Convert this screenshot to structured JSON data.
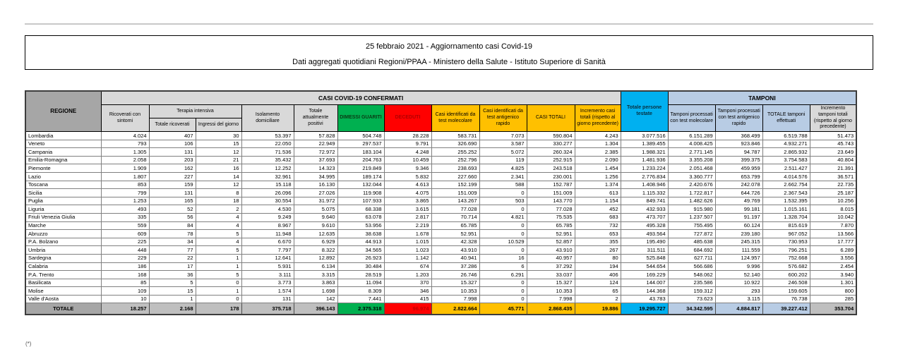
{
  "title": {
    "line1": "25 febbraio 2021 - Aggiornamento casi Covid-19",
    "line2": "Dati aggregati quotidiani Regioni/PPAA - Ministero della Salute - Istituto Superiore di Sanità"
  },
  "footnote": "(*)",
  "colors": {
    "green": "#00b050",
    "red": "#ff0000",
    "amber": "#ffc000",
    "cyan": "#00b0f0",
    "light_blue": "#b8cce4",
    "header_gray": "#d9d9d9",
    "dark_gray": "#a6a6a6",
    "total_gray": "#bfbfbf"
  },
  "table": {
    "groups": {
      "confermati": "CASI COVID-19 CONFERMATI",
      "tamponi": "TAMPONI",
      "terapia_intensiva": "Terapia intensiva"
    },
    "columns": {
      "regione": "REGIONE",
      "ricoverati": "Ricoverati con sintomi",
      "totale_ricoverati": "Totale ricoverati",
      "ingressi_giorno": "Ingressi del giorno",
      "isolamento": "Isolamento domiciliare",
      "attualmente_positivi": "Totale attualmente positivi",
      "dimessi_guariti": "DIMESSI GUARITI",
      "deceduti": "DECEDUTI",
      "casi_molecolare": "Casi identificati da test molecolare",
      "casi_antigenico": "Casi identificati da test antigenico rapido",
      "casi_totali": "CASI TOTALI",
      "incremento_casi": "Incremento casi totali (rispetto al giorno precedente)",
      "persone_testate": "Totale persone testate",
      "tamponi_molecolare": "Tamponi processati con test molecolare",
      "tamponi_antigenico": "Tamponi processati con test antigenico rapido",
      "tamponi_totale": "TOTALE tamponi effettuati",
      "incremento_tamponi": "Incremento tamponi totali (rispetto al giorno precedente)"
    },
    "rows": [
      [
        "Lombardia",
        "4.024",
        "407",
        "30",
        "53.397",
        "57.828",
        "504.748",
        "28.228",
        "583.731",
        "7.073",
        "590.804",
        "4.243",
        "3.077.516",
        "6.151.289",
        "368.499",
        "6.519.788",
        "51.473"
      ],
      [
        "Veneto",
        "793",
        "106",
        "15",
        "22.050",
        "22.949",
        "297.537",
        "9.791",
        "326.690",
        "3.587",
        "330.277",
        "1.304",
        "1.389.455",
        "4.008.425",
        "923.846",
        "4.932.271",
        "45.743"
      ],
      [
        "Campania",
        "1.305",
        "131",
        "12",
        "71.536",
        "72.972",
        "183.104",
        "4.248",
        "255.252",
        "5.072",
        "260.324",
        "2.385",
        "1.988.321",
        "2.771.145",
        "94.787",
        "2.865.932",
        "23.649"
      ],
      [
        "Emilia-Romagna",
        "2.058",
        "203",
        "21",
        "35.432",
        "37.693",
        "204.763",
        "10.459",
        "252.796",
        "119",
        "252.915",
        "2.090",
        "1.481.936",
        "3.355.208",
        "399.375",
        "3.754.583",
        "40.804"
      ],
      [
        "Piemonte",
        "1.909",
        "162",
        "16",
        "12.252",
        "14.323",
        "219.849",
        "9.346",
        "238.693",
        "4.825",
        "243.518",
        "1.454",
        "1.233.224",
        "2.051.468",
        "459.959",
        "2.511.427",
        "21.391"
      ],
      [
        "Lazio",
        "1.807",
        "227",
        "14",
        "32.961",
        "34.995",
        "189.174",
        "5.832",
        "227.660",
        "2.341",
        "230.001",
        "1.256",
        "2.776.834",
        "3.360.777",
        "653.799",
        "4.014.576",
        "36.571"
      ],
      [
        "Toscana",
        "853",
        "159",
        "12",
        "15.118",
        "16.130",
        "132.044",
        "4.613",
        "152.199",
        "588",
        "152.787",
        "1.374",
        "1.408.946",
        "2.420.676",
        "242.078",
        "2.662.754",
        "22.735"
      ],
      [
        "Sicilia",
        "799",
        "131",
        "8",
        "26.096",
        "27.026",
        "119.908",
        "4.075",
        "151.009",
        "0",
        "151.009",
        "613",
        "1.115.332",
        "1.722.817",
        "644.726",
        "2.367.543",
        "25.187"
      ],
      [
        "Puglia",
        "1.253",
        "165",
        "18",
        "30.554",
        "31.972",
        "107.933",
        "3.865",
        "143.267",
        "503",
        "143.770",
        "1.154",
        "849.741",
        "1.482.626",
        "49.769",
        "1.532.395",
        "10.256"
      ],
      [
        "Liguria",
        "493",
        "52",
        "2",
        "4.530",
        "5.075",
        "68.338",
        "3.615",
        "77.028",
        "0",
        "77.028",
        "452",
        "432.933",
        "915.980",
        "99.181",
        "1.015.161",
        "8.015"
      ],
      [
        "Friuli Venezia Giulia",
        "335",
        "56",
        "4",
        "9.249",
        "9.640",
        "63.078",
        "2.817",
        "70.714",
        "4.821",
        "75.535",
        "683",
        "473.707",
        "1.237.507",
        "91.197",
        "1.328.704",
        "10.042"
      ],
      [
        "Marche",
        "559",
        "84",
        "4",
        "8.967",
        "9.610",
        "53.956",
        "2.219",
        "65.785",
        "0",
        "65.785",
        "732",
        "495.328",
        "755.495",
        "60.124",
        "815.619",
        "7.870"
      ],
      [
        "Abruzzo",
        "609",
        "78",
        "5",
        "11.948",
        "12.635",
        "38.638",
        "1.678",
        "52.951",
        "0",
        "52.951",
        "653",
        "493.564",
        "727.872",
        "239.180",
        "967.052",
        "13.566"
      ],
      [
        "P.A. Bolzano",
        "225",
        "34",
        "4",
        "6.670",
        "6.929",
        "44.913",
        "1.015",
        "42.328",
        "10.529",
        "52.857",
        "355",
        "195.490",
        "485.638",
        "245.315",
        "730.953",
        "17.777"
      ],
      [
        "Umbria",
        "448",
        "77",
        "5",
        "7.797",
        "8.322",
        "34.565",
        "1.023",
        "43.910",
        "0",
        "43.910",
        "267",
        "311.511",
        "684.692",
        "111.559",
        "796.251",
        "6.289"
      ],
      [
        "Sardegna",
        "229",
        "22",
        "1",
        "12.641",
        "12.892",
        "26.923",
        "1.142",
        "40.941",
        "16",
        "40.957",
        "80",
        "525.848",
        "627.711",
        "124.957",
        "752.668",
        "3.556"
      ],
      [
        "Calabria",
        "186",
        "17",
        "1",
        "5.931",
        "6.134",
        "30.484",
        "674",
        "37.286",
        "6",
        "37.292",
        "194",
        "544.654",
        "566.686",
        "9.996",
        "576.682",
        "2.454"
      ],
      [
        "P.A. Trento",
        "168",
        "36",
        "5",
        "3.111",
        "3.315",
        "28.519",
        "1.203",
        "26.746",
        "6.291",
        "33.037",
        "406",
        "169.229",
        "548.062",
        "52.140",
        "600.202",
        "3.940"
      ],
      [
        "Basilicata",
        "85",
        "5",
        "0",
        "3.773",
        "3.863",
        "11.094",
        "370",
        "15.327",
        "0",
        "15.327",
        "124",
        "144.007",
        "235.586",
        "10.922",
        "246.508",
        "1.301"
      ],
      [
        "Molise",
        "109",
        "15",
        "1",
        "1.574",
        "1.698",
        "8.309",
        "346",
        "10.353",
        "0",
        "10.353",
        "65",
        "144.368",
        "159.312",
        "293",
        "159.605",
        "800"
      ],
      [
        "Valle d'Aosta",
        "10",
        "1",
        "0",
        "131",
        "142",
        "7.441",
        "415",
        "7.998",
        "0",
        "7.998",
        "2",
        "43.783",
        "73.623",
        "3.115",
        "76.738",
        "285"
      ]
    ],
    "total": [
      "TOTALE",
      "18.257",
      "2.168",
      "178",
      "375.718",
      "396.143",
      "2.375.318",
      "96.974",
      "2.822.664",
      "45.771",
      "2.868.435",
      "19.886",
      "19.295.727",
      "34.342.595",
      "4.884.817",
      "39.227.412",
      "353.704"
    ]
  }
}
